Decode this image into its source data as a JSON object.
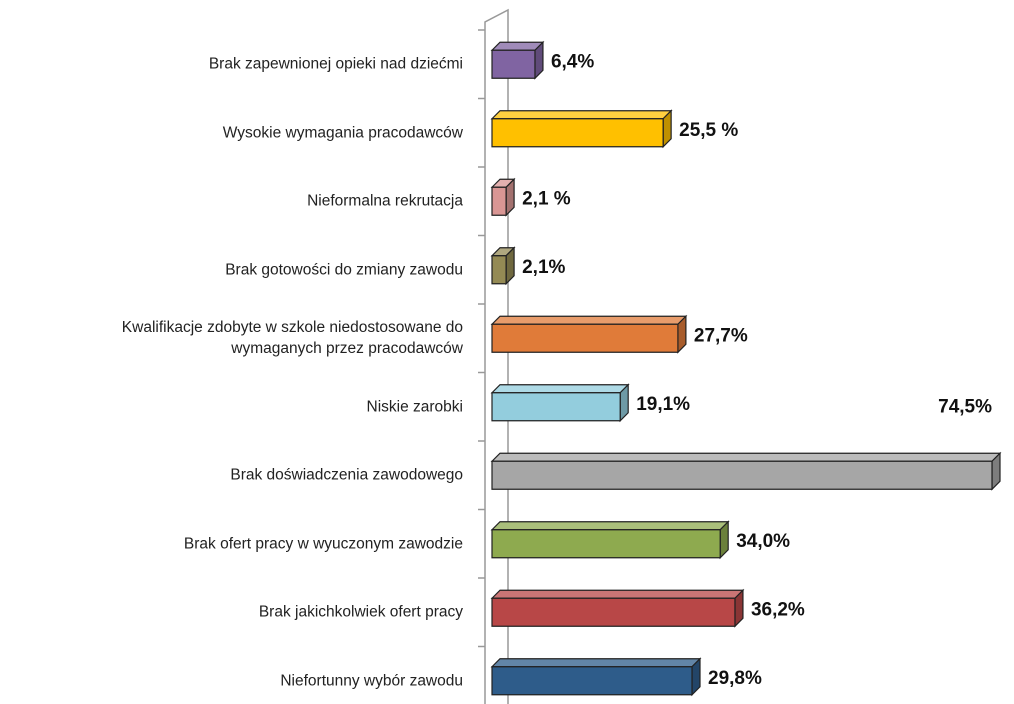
{
  "chart_data": {
    "type": "bar",
    "orientation": "horizontal",
    "categories": [
      "Brak zapewnionej opieki nad dziećmi",
      "Wysokie wymagania pracodawców",
      "Nieformalna rekrutacja",
      "Brak gotowości do zmiany zawodu",
      "Kwalifikacje zdobyte w szkole niedostosowane do\nwymaganych przez pracodawców",
      "Niskie zarobki",
      "Brak doświadczenia zawodowego",
      "Brak ofert pracy w wyuczonym zawodzie",
      "Brak jakichkolwiek ofert pracy",
      "Niefortunny wybór zawodu"
    ],
    "values": [
      6.4,
      25.5,
      2.1,
      2.1,
      27.7,
      19.1,
      74.5,
      34.0,
      36.2,
      29.8
    ],
    "value_labels": [
      "6,4%",
      "25,5 %",
      "2,1 %",
      "2,1%",
      "27,7%",
      "19,1%",
      "74,5%",
      "34,0%",
      "36,2%",
      "29,8%"
    ],
    "colors": [
      "#8064a2",
      "#ffc000",
      "#d99694",
      "#948a54",
      "#e07b39",
      "#93cddd",
      "#a6a6a6",
      "#8eaa4f",
      "#b84747",
      "#2e5c8a"
    ]
  }
}
